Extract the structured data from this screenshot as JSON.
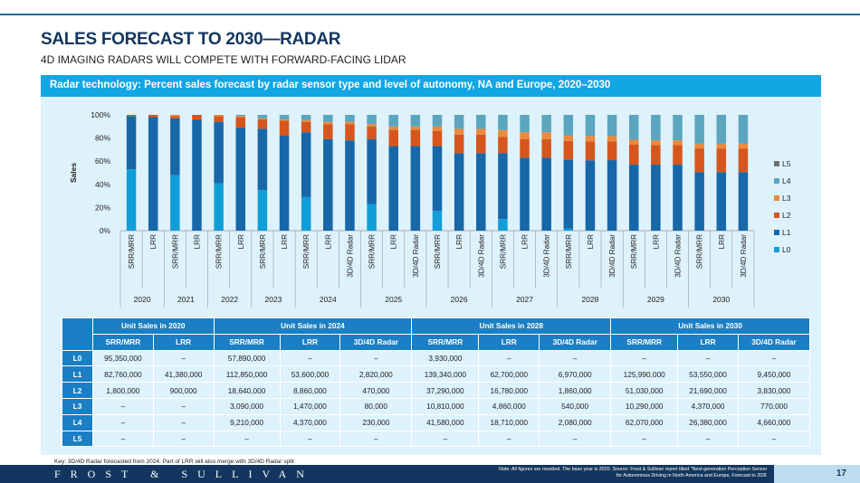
{
  "header": {
    "title": "SALES FORECAST TO 2030—RADAR",
    "subtitle": "4D IMAGING RADARS WILL COMPETE WITH FORWARD-FACING LIDAR",
    "banner": "Radar technology: Percent sales forecast by radar sensor type and level of autonomy, NA and Europe, 2020–2030"
  },
  "chart_data": {
    "type": "bar",
    "stacked": true,
    "ylabel": "Sales",
    "ylim": [
      0,
      100
    ],
    "yticks": [
      "0%",
      "20%",
      "40%",
      "60%",
      "80%",
      "100%"
    ],
    "legend_position": "right",
    "colors": {
      "L0": "#119ed8",
      "L1": "#1767a9",
      "L2": "#d6561d",
      "L3": "#e98a3c",
      "L4": "#5ba5bf",
      "L5": "#6f6f6f"
    },
    "groups": [
      {
        "year": "2020",
        "categories": [
          "SRR/MRR",
          "LRR"
        ]
      },
      {
        "year": "2021",
        "categories": [
          "SRR/MRR",
          "LRR"
        ]
      },
      {
        "year": "2022",
        "categories": [
          "SRR/MRR",
          "LRR"
        ]
      },
      {
        "year": "2023",
        "categories": [
          "SRR/MRR",
          "LRR"
        ]
      },
      {
        "year": "2024",
        "categories": [
          "SRR/MRR",
          "LRR",
          "3D/4D Radar"
        ]
      },
      {
        "year": "2025",
        "categories": [
          "SRR/MRR",
          "LRR",
          "3D/4D Radar"
        ]
      },
      {
        "year": "2026",
        "categories": [
          "SRR/MRR",
          "LRR",
          "3D/4D Radar"
        ]
      },
      {
        "year": "2027",
        "categories": [
          "SRR/MRR",
          "LRR",
          "3D/4D Radar"
        ]
      },
      {
        "year": "2028",
        "categories": [
          "SRR/MRR",
          "LRR",
          "3D/4D Radar"
        ]
      },
      {
        "year": "2029",
        "categories": [
          "SRR/MRR",
          "LRR",
          "3D/4D Radar"
        ]
      },
      {
        "year": "2030",
        "categories": [
          "SRR/MRR",
          "LRR",
          "3D/4D Radar"
        ]
      }
    ],
    "series": [
      {
        "name": "L0",
        "values": [
          53,
          0,
          48,
          0,
          41,
          0,
          35,
          0,
          29,
          0,
          0,
          23,
          0,
          0,
          17,
          0,
          0,
          10,
          0,
          0,
          1.7,
          0,
          0,
          0,
          0,
          0,
          0,
          0,
          0
        ]
      },
      {
        "name": "L1",
        "values": [
          46,
          98,
          49,
          96,
          53,
          89,
          53,
          82,
          56,
          79,
          78,
          56,
          73,
          73,
          56,
          67,
          67,
          57,
          63,
          63,
          59.8,
          60.8,
          60.9,
          57,
          57,
          57,
          50.5,
          50.5,
          50.5
        ]
      },
      {
        "name": "L2",
        "values": [
          1,
          2,
          2,
          4,
          5,
          9,
          8,
          13,
          9,
          13,
          14,
          11,
          14,
          14,
          13,
          16,
          16,
          14,
          16,
          16,
          16,
          16.3,
          16.2,
          17.5,
          17,
          17,
          20.5,
          20.5,
          20.5
        ]
      },
      {
        "name": "L3",
        "values": [
          0,
          0,
          1,
          0,
          1,
          1,
          1,
          1,
          1.5,
          2,
          2,
          2,
          3,
          3,
          4,
          5,
          5,
          6,
          6,
          6,
          4.6,
          4.7,
          4.7,
          4,
          4,
          4,
          4.1,
          4.1,
          4.1
        ]
      },
      {
        "name": "L4",
        "values": [
          0,
          0,
          0,
          0,
          0,
          1,
          3,
          4,
          4.5,
          6,
          6,
          8,
          10,
          10,
          10,
          12,
          12,
          13,
          15,
          15,
          17.9,
          18.2,
          18.2,
          21.5,
          22,
          22,
          24.9,
          24.9,
          24.9
        ]
      },
      {
        "name": "L5",
        "values": [
          0,
          0,
          0,
          0,
          0,
          0,
          0,
          0,
          0,
          0,
          0,
          0,
          0,
          0,
          0,
          0,
          0,
          0,
          0,
          0,
          0,
          0,
          0,
          0,
          0,
          0,
          0,
          0,
          0
        ]
      }
    ]
  },
  "table": {
    "groups": [
      "Unit Sales in 2020",
      "Unit Sales in 2024",
      "Unit Sales in 2028",
      "Unit Sales in 2030"
    ],
    "subheaders": [
      "SRR/MRR",
      "LRR",
      "SRR/MRR",
      "LRR",
      "3D/4D Radar",
      "SRR/MRR",
      "LRR",
      "3D/4D Radar",
      "SRR/MRR",
      "LRR",
      "3D/4D Radar"
    ],
    "rows": [
      {
        "level": "L0",
        "cells": [
          "95,350,000",
          "–",
          "57,890,000",
          "–",
          "–",
          "3,930,000",
          "–",
          "–",
          "–",
          "–",
          "–"
        ]
      },
      {
        "level": "L1",
        "cells": [
          "82,760,000",
          "41,380,000",
          "112,850,000",
          "53,600,000",
          "2,820,000",
          "139,340,000",
          "62,700,000",
          "6,970,000",
          "125,990,000",
          "53,550,000",
          "9,450,000"
        ]
      },
      {
        "level": "L2",
        "cells": [
          "1,800,000",
          "900,000",
          "18,640,000",
          "8,860,000",
          "470,000",
          "37,290,000",
          "16,780,000",
          "1,860,000",
          "51,030,000",
          "21,690,000",
          "3,830,000"
        ]
      },
      {
        "level": "L3",
        "cells": [
          "–",
          "–",
          "3,090,000",
          "1,470,000",
          "80,000",
          "10,810,000",
          "4,860,000",
          "540,000",
          "10,290,000",
          "4,370,000",
          "770,000"
        ]
      },
      {
        "level": "L4",
        "cells": [
          "–",
          "–",
          "9,210,000",
          "4,370,000",
          "230,000",
          "41,580,000",
          "18,710,000",
          "2,080,000",
          "62,070,000",
          "26,380,000",
          "4,660,000"
        ]
      },
      {
        "level": "L5",
        "cells": [
          "–",
          "–",
          "–",
          "–",
          "–",
          "–",
          "–",
          "–",
          "–",
          "–",
          "–"
        ]
      }
    ]
  },
  "key": "Key: 3D/4D Radar forecasted from 2024.  Part of LRR will also merge with 3D/4D Radar split",
  "footer": {
    "logo": "FROST & SULLIVAN",
    "note_line1": "Note: All figures are rounded. The base year is 2020. Source: Frost & Sullivan report titled \"Next-generation Perception Sensors",
    "note_line2": "for Autonomous Driving in North America and Europe, Forecast to 2030\"",
    "page": "17"
  }
}
